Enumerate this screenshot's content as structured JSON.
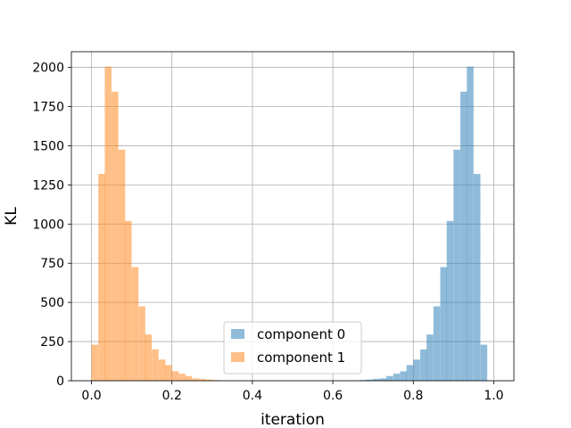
{
  "chart_data": {
    "type": "bar",
    "title": "",
    "xlabel": "iteration",
    "ylabel": "KL",
    "xlim": [
      -0.05,
      1.05
    ],
    "ylim": [
      0,
      2100
    ],
    "xticks": [
      0.0,
      0.2,
      0.4,
      0.6,
      0.8,
      1.0
    ],
    "xtick_labels": [
      "0.0",
      "0.2",
      "0.4",
      "0.6",
      "0.8",
      "1.0"
    ],
    "yticks": [
      0,
      250,
      500,
      750,
      1000,
      1250,
      1500,
      1750,
      2000
    ],
    "ytick_labels": [
      "0",
      "250",
      "500",
      "750",
      "1000",
      "1250",
      "1500",
      "1750",
      "2000"
    ],
    "grid": true,
    "legend_position": "lower-center",
    "bin_width": 0.0167,
    "series": [
      {
        "name": "component 0",
        "color": "#1f77b4",
        "opacity": 0.5,
        "bin_starts": [
          0.667,
          0.683,
          0.7,
          0.717,
          0.733,
          0.75,
          0.767,
          0.783,
          0.8,
          0.817,
          0.833,
          0.85,
          0.867,
          0.883,
          0.9,
          0.917,
          0.933,
          0.95,
          0.967,
          0.983
        ],
        "values": [
          5,
          8,
          12,
          15,
          30,
          45,
          60,
          100,
          135,
          200,
          295,
          475,
          725,
          1020,
          1475,
          1845,
          2005,
          1320,
          230,
          0
        ]
      },
      {
        "name": "component 1",
        "color": "#ff7f0e",
        "opacity": 0.5,
        "bin_starts": [
          0.0,
          0.017,
          0.033,
          0.05,
          0.067,
          0.083,
          0.1,
          0.117,
          0.133,
          0.15,
          0.167,
          0.183,
          0.2,
          0.217,
          0.233,
          0.25,
          0.267,
          0.283,
          0.3,
          0.317
        ],
        "values": [
          230,
          1320,
          2005,
          1845,
          1475,
          1020,
          725,
          475,
          295,
          200,
          135,
          100,
          60,
          45,
          30,
          15,
          12,
          8,
          5,
          0
        ]
      }
    ]
  }
}
